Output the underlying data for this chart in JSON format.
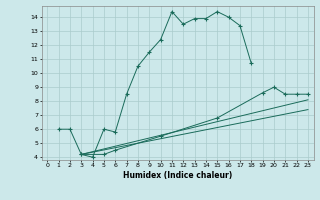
{
  "title": "",
  "xlabel": "Humidex (Indice chaleur)",
  "bg_color": "#cce8ea",
  "grid_color": "#aacccc",
  "line_color": "#1a6b5a",
  "xlim": [
    -0.5,
    23.5
  ],
  "ylim": [
    3.8,
    14.8
  ],
  "xticks": [
    0,
    1,
    2,
    3,
    4,
    5,
    6,
    7,
    8,
    9,
    10,
    11,
    12,
    13,
    14,
    15,
    16,
    17,
    18,
    19,
    20,
    21,
    22,
    23
  ],
  "yticks": [
    4,
    5,
    6,
    7,
    8,
    9,
    10,
    11,
    12,
    13,
    14
  ],
  "line1": {
    "x": [
      1,
      2,
      3,
      4,
      5,
      6,
      7,
      8,
      9,
      10,
      11,
      12,
      13,
      14,
      15,
      16,
      17,
      18
    ],
    "y": [
      6,
      6,
      4.2,
      4.0,
      6.0,
      5.8,
      8.5,
      10.5,
      11.5,
      12.4,
      14.4,
      13.5,
      13.9,
      13.9,
      14.4,
      14.0,
      13.4,
      10.7
    ]
  },
  "line2": {
    "x": [
      3,
      5,
      6,
      10,
      15,
      19,
      20,
      21,
      22,
      23
    ],
    "y": [
      4.2,
      4.2,
      4.5,
      5.5,
      6.8,
      8.6,
      9.0,
      8.5,
      8.5,
      8.5
    ]
  },
  "line3": {
    "x": [
      3,
      23
    ],
    "y": [
      4.2,
      8.1
    ]
  },
  "line4": {
    "x": [
      3,
      23
    ],
    "y": [
      4.2,
      7.4
    ]
  }
}
